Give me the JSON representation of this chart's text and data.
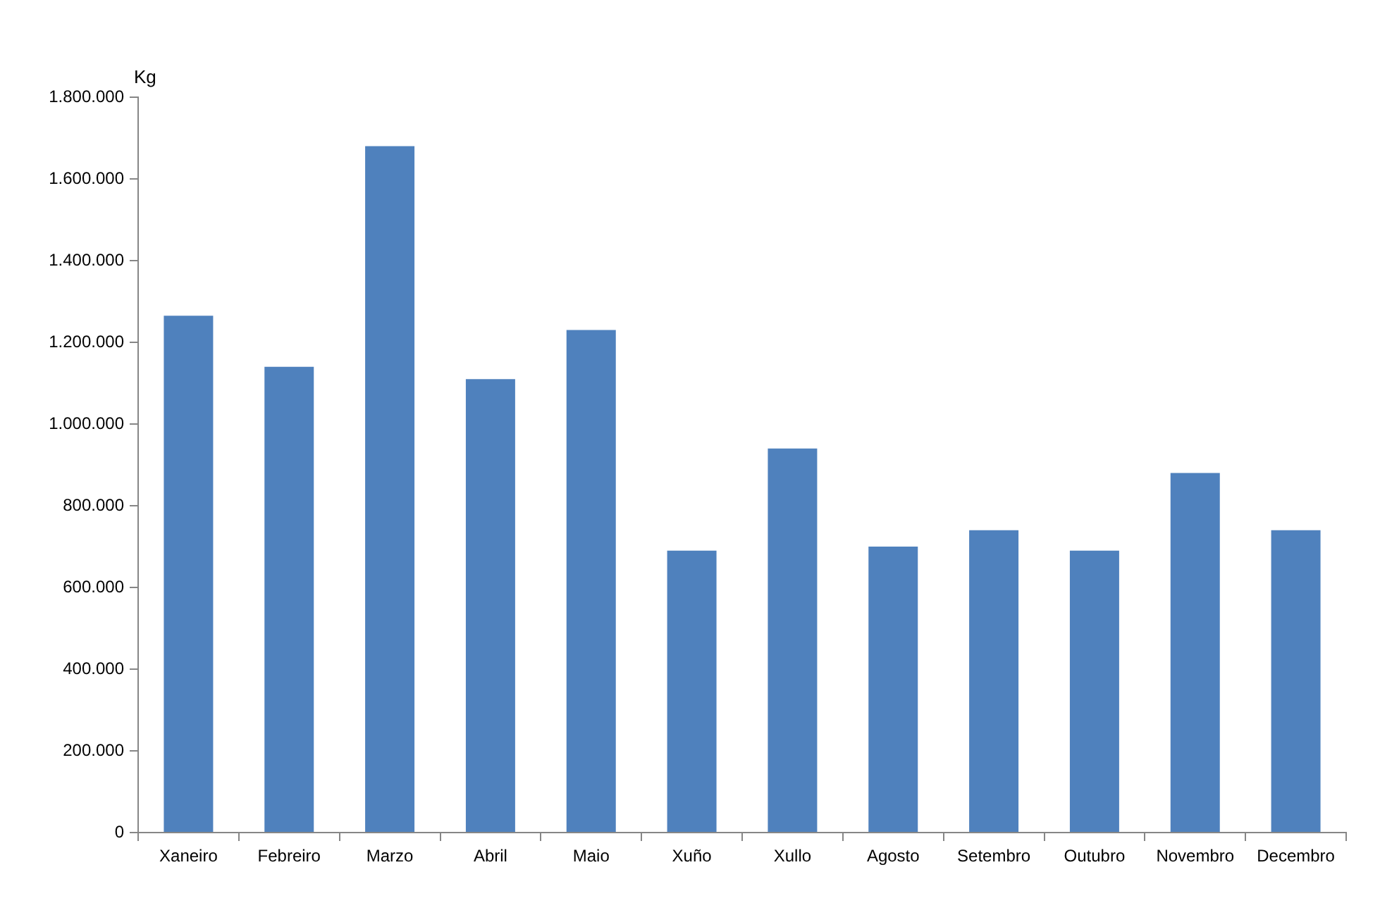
{
  "chart_data": {
    "type": "bar",
    "ylabel": "Kg",
    "categories": [
      "Xaneiro",
      "Febreiro",
      "Marzo",
      "Abril",
      "Maio",
      "Xuño",
      "Xullo",
      "Agosto",
      "Setembro",
      "Outubro",
      "Novembro",
      "Decembro"
    ],
    "values": [
      1265000,
      1140000,
      1680000,
      1110000,
      1230000,
      690000,
      940000,
      700000,
      740000,
      690000,
      880000,
      740000
    ],
    "color": "#4f81bd",
    "ylim": [
      0,
      1800000
    ],
    "yticks": [
      0,
      {
        "value": 200000,
        "label": "200.000"
      },
      {
        "value": 400000,
        "label": "400.000"
      },
      {
        "value": 600000,
        "label": "600.000"
      },
      {
        "value": 800000,
        "label": "800.000"
      },
      {
        "value": 1000000,
        "label": "1.000.000"
      },
      {
        "value": 1200000,
        "label": "1.200.000"
      },
      {
        "value": 1400000,
        "label": "1.400.000"
      },
      {
        "value": 1600000,
        "label": "1.600.000"
      },
      {
        "value": 1800000,
        "label": "1.800.000"
      }
    ],
    "grid": false
  }
}
